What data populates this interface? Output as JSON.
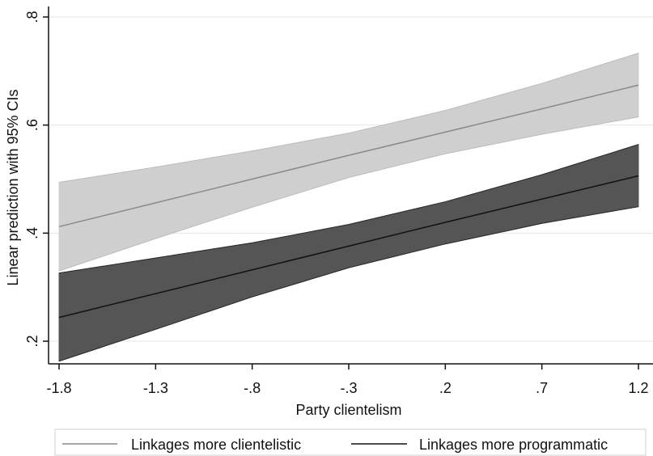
{
  "chart_data": {
    "type": "line",
    "xlabel": "Party clientelism",
    "ylabel": "Linear prediction with 95% CIs",
    "x": [
      -1.8,
      -1.3,
      -0.8,
      -0.3,
      0.2,
      0.7,
      1.2
    ],
    "x_tick_labels": [
      "-1.8",
      "-1.3",
      "-.8",
      "-.3",
      ".2",
      ".7",
      "1.2"
    ],
    "y_ticks": [
      0.2,
      0.4,
      0.6,
      0.8
    ],
    "y_tick_labels": [
      ".2",
      ".4",
      ".6",
      ".8"
    ],
    "xlim": [
      -1.8,
      1.2
    ],
    "ylim": [
      0.15,
      0.81
    ],
    "grid": "horizontal",
    "legend_position": "bottom",
    "series": [
      {
        "name": "Linkages more clientelistic",
        "values": [
          0.412,
          0.456,
          0.5,
          0.544,
          0.587,
          0.63,
          0.674
        ],
        "ci_lower": [
          0.33,
          0.39,
          0.448,
          0.503,
          0.547,
          0.583,
          0.615
        ],
        "ci_upper": [
          0.494,
          0.522,
          0.552,
          0.585,
          0.627,
          0.677,
          0.733
        ],
        "line_color": "#8a8a8a",
        "band_color": "#cfcfcf"
      },
      {
        "name": "Linkages more programmatic",
        "values": [
          0.244,
          0.288,
          0.332,
          0.376,
          0.42,
          0.463,
          0.506
        ],
        "ci_lower": [
          0.163,
          0.222,
          0.282,
          0.336,
          0.38,
          0.418,
          0.449
        ],
        "ci_upper": [
          0.326,
          0.354,
          0.382,
          0.416,
          0.458,
          0.508,
          0.564
        ],
        "line_color": "#111111",
        "band_color": "#555555"
      }
    ]
  }
}
